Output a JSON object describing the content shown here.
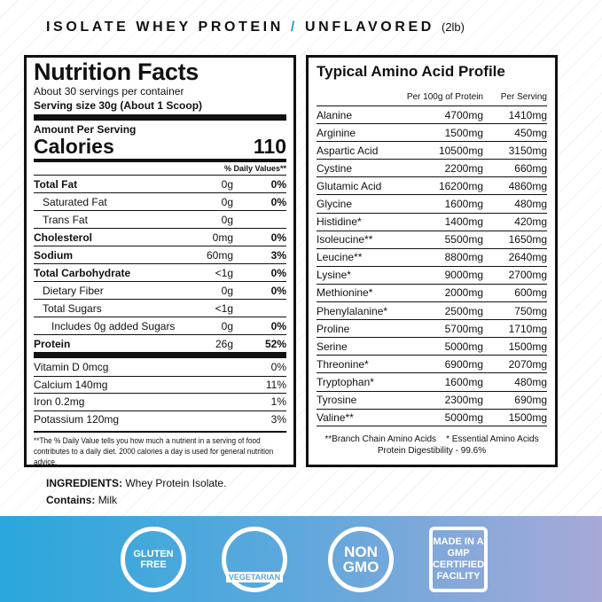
{
  "header": {
    "product": "ISOLATE WHEY PROTEIN",
    "separator": "/",
    "flavor": "UNFLAVORED",
    "size": "(2lb)"
  },
  "nutrition": {
    "title": "Nutrition Facts",
    "servings": "About 30 servings per container",
    "serving_size": "Serving size 30g (About 1 Scoop)",
    "amount_per_serving": "Amount Per Serving",
    "calories_label": "Calories",
    "calories": "110",
    "dv_header": "% Daily Values**",
    "rows": [
      {
        "name": "Total Fat",
        "amount": "0g",
        "dv": "0%",
        "bold": true,
        "indent": 0
      },
      {
        "name": "Saturated Fat",
        "amount": "0g",
        "dv": "0%",
        "bold": false,
        "indent": 1
      },
      {
        "name": "Trans Fat",
        "amount": "0g",
        "dv": "",
        "bold": false,
        "indent": 1
      },
      {
        "name": "Cholesterol",
        "amount": "0mg",
        "dv": "0%",
        "bold": true,
        "indent": 0
      },
      {
        "name": "Sodium",
        "amount": "60mg",
        "dv": "3%",
        "bold": true,
        "indent": 0
      },
      {
        "name": "Total Carbohydrate",
        "amount": "<1g",
        "dv": "0%",
        "bold": true,
        "indent": 0
      },
      {
        "name": "Dietary Fiber",
        "amount": "0g",
        "dv": "0%",
        "bold": false,
        "indent": 1
      },
      {
        "name": "Total Sugars",
        "amount": "<1g",
        "dv": "",
        "bold": false,
        "indent": 1
      },
      {
        "name": "Includes 0g added Sugars",
        "amount": "0g",
        "dv": "0%",
        "bold": false,
        "indent": 2
      },
      {
        "name": "Protein",
        "amount": "26g",
        "dv": "52%",
        "bold": true,
        "indent": 0
      }
    ],
    "vitamins": [
      {
        "name": "Vitamin D 0mcg",
        "dv": "0%"
      },
      {
        "name": "Calcium 140mg",
        "dv": "11%"
      },
      {
        "name": "Iron 0.2mg",
        "dv": "1%"
      },
      {
        "name": "Potassium 120mg",
        "dv": "3%"
      }
    ],
    "footnote": "**The % Daily Value tells you how much a nutrient in a  serving of food contributes to a daily diet. 2000 calories a day is used for general nutrition advice."
  },
  "amino": {
    "title": "Typical Amino Acid Profile",
    "col_per100": "Per 100g of Protein",
    "col_serving": "Per Serving",
    "rows": [
      [
        "Alanine",
        "4700mg",
        "1410mg"
      ],
      [
        "Arginine",
        "1500mg",
        "450mg"
      ],
      [
        "Aspartic Acid",
        "10500mg",
        "3150mg"
      ],
      [
        "Cystine",
        "2200mg",
        "660mg"
      ],
      [
        "Glutamic Acid",
        "16200mg",
        "4860mg"
      ],
      [
        "Glycine",
        "1600mg",
        "480mg"
      ],
      [
        "Histidine*",
        "1400mg",
        "420mg"
      ],
      [
        "Isoleucine**",
        "5500mg",
        "1650mg"
      ],
      [
        "Leucine**",
        "8800mg",
        "2640mg"
      ],
      [
        "Lysine*",
        "9000mg",
        "2700mg"
      ],
      [
        "Methionine*",
        "2000mg",
        "600mg"
      ],
      [
        "Phenylalanine*",
        "2500mg",
        "750mg"
      ],
      [
        "Proline",
        "5700mg",
        "1710mg"
      ],
      [
        "Serine",
        "5000mg",
        "1500mg"
      ],
      [
        "Threonine*",
        "6900mg",
        "2070mg"
      ],
      [
        "Tryptophan*",
        "1600mg",
        "480mg"
      ],
      [
        "Tyrosine",
        "2300mg",
        "690mg"
      ],
      [
        "Valine**",
        "5000mg",
        "1500mg"
      ]
    ],
    "footnote1": "**Branch Chain Amino Acids    * Essential Amino Acids",
    "footnote2": "Protein Digestibility - 99.6%"
  },
  "ingredients": {
    "label": "INGREDIENTS:",
    "value": "Whey Protein Isolate.",
    "contains_label": "Contains:",
    "contains_value": "Milk"
  },
  "badges": [
    {
      "icon": "gluten-free-wheat-icon",
      "text": "GLUTEN FREE"
    },
    {
      "icon": "vegetarian-leaf-icon",
      "text": "VEGETARIAN"
    },
    {
      "icon": "non-gmo-leaf-icon",
      "text": "NON GMO"
    },
    {
      "icon": "gmp-certified-icon",
      "text": "MADE IN A GMP CERTIFIED FACILITY"
    }
  ],
  "colors": {
    "accent": "#2aa0c8",
    "band_start": "#2aa7dd",
    "band_end": "#a8a9d8"
  }
}
